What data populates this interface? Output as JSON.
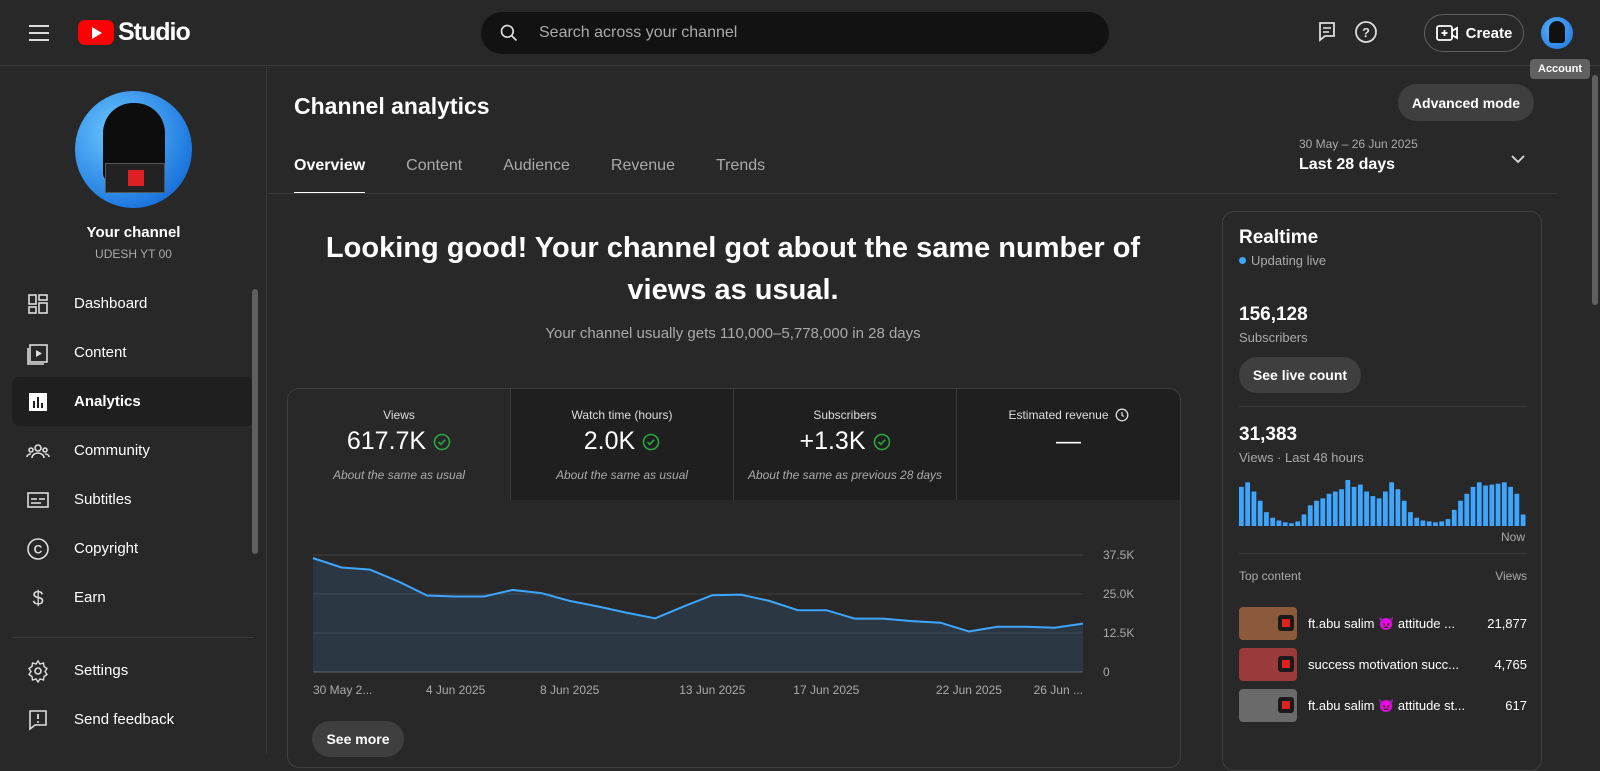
{
  "header": {
    "logo_text": "Studio",
    "search_placeholder": "Search across your channel",
    "create_label": "Create",
    "account_tooltip": "Account"
  },
  "sidebar": {
    "channel_title": "Your channel",
    "channel_handle": "UDESH YT 00",
    "items": [
      {
        "label": "Dashboard",
        "icon": "dashboard-icon"
      },
      {
        "label": "Content",
        "icon": "content-icon"
      },
      {
        "label": "Analytics",
        "icon": "analytics-icon",
        "active": true
      },
      {
        "label": "Community",
        "icon": "community-icon"
      },
      {
        "label": "Subtitles",
        "icon": "subtitles-icon"
      },
      {
        "label": "Copyright",
        "icon": "copyright-icon"
      },
      {
        "label": "Earn",
        "icon": "earn-icon"
      }
    ],
    "bottom_items": [
      {
        "label": "Settings",
        "icon": "gear-icon"
      },
      {
        "label": "Send feedback",
        "icon": "feedback-icon"
      }
    ]
  },
  "main": {
    "title": "Channel analytics",
    "advanced_mode": "Advanced mode",
    "tabs": [
      "Overview",
      "Content",
      "Audience",
      "Revenue",
      "Trends"
    ],
    "date_range_dates": "30 May – 26 Jun 2025",
    "date_range_label": "Last 28 days",
    "headline": "Looking good! Your channel got about the same number of views as usual.",
    "subhead": "Your channel usually gets 110,000–5,778,000 in 28 days",
    "metrics": [
      {
        "label": "Views",
        "value": "617.7K",
        "note": "About the same as usual"
      },
      {
        "label": "Watch time (hours)",
        "value": "2.0K",
        "note": "About the same as usual"
      },
      {
        "label": "Subscribers",
        "value": "+1.3K",
        "note": "About the same as previous 28 days"
      },
      {
        "label": "Estimated revenue",
        "value": "—",
        "note": ""
      }
    ],
    "see_more": "See more"
  },
  "chart_data": {
    "type": "area",
    "x": [
      "30 May",
      "31 May",
      "1 Jun",
      "2 Jun",
      "3 Jun",
      "4 Jun",
      "5 Jun",
      "6 Jun",
      "7 Jun",
      "8 Jun",
      "9 Jun",
      "10 Jun",
      "11 Jun",
      "12 Jun",
      "13 Jun",
      "14 Jun",
      "15 Jun",
      "16 Jun",
      "17 Jun",
      "18 Jun",
      "19 Jun",
      "20 Jun",
      "21 Jun",
      "22 Jun",
      "23 Jun",
      "24 Jun",
      "25 Jun",
      "26 Jun"
    ],
    "series": [
      {
        "values": [
          36500,
          33500,
          32800,
          29000,
          24500,
          24200,
          24200,
          26300,
          25300,
          22800,
          21000,
          19000,
          17200,
          21000,
          24600,
          24800,
          22800,
          19800,
          19800,
          17100,
          17100,
          16300,
          15800,
          13000,
          14500,
          14500,
          14200,
          15500
        ]
      }
    ],
    "x_tick_labels": [
      "30 May 2...",
      "4 Jun 2025",
      "8 Jun 2025",
      "13 Jun 2025",
      "17 Jun 2025",
      "22 Jun 2025",
      "26 Jun ..."
    ],
    "x_tick_index": [
      0,
      5,
      9,
      14,
      18,
      23,
      27
    ],
    "y_ticks": [
      0,
      12500,
      25000,
      37500
    ],
    "y_tick_labels": [
      "0",
      "12.5K",
      "25.0K",
      "37.5K"
    ],
    "ylim": [
      0,
      37500
    ],
    "grid": true,
    "line_color": "#3ea6ff"
  },
  "realtime": {
    "title": "Realtime",
    "live_text": "Updating live",
    "subscribers": "156,128",
    "subscribers_label": "Subscribers",
    "live_count_button": "See live count",
    "views": "31,383",
    "views_label": "Views · Last 48 hours",
    "now_label": "Now",
    "bar_values": [
      0.85,
      0.95,
      0.75,
      0.55,
      0.3,
      0.18,
      0.12,
      0.08,
      0.06,
      0.1,
      0.25,
      0.45,
      0.55,
      0.6,
      0.7,
      0.75,
      0.8,
      1.0,
      0.85,
      0.9,
      0.75,
      0.65,
      0.6,
      0.75,
      0.95,
      0.8,
      0.55,
      0.3,
      0.18,
      0.12,
      0.1,
      0.08,
      0.1,
      0.15,
      0.35,
      0.55,
      0.7,
      0.85,
      0.95,
      0.88,
      0.9,
      0.92,
      0.95,
      0.85,
      0.7,
      0.25
    ],
    "bar_color": "#3ea6ff",
    "top_content_label": "Top content",
    "views_col_label": "Views",
    "top_content": [
      {
        "title": "ft.abu salim 👿 attitude ...",
        "views": "21,877",
        "thumb_color": "#8a5a3a"
      },
      {
        "title": "success motivation succ...",
        "views": "4,765",
        "thumb_color": "#9a3a3a"
      },
      {
        "title": "ft.abu salim 👿 attitude st...",
        "views": "617",
        "thumb_color": "#6a6a6a"
      }
    ]
  }
}
